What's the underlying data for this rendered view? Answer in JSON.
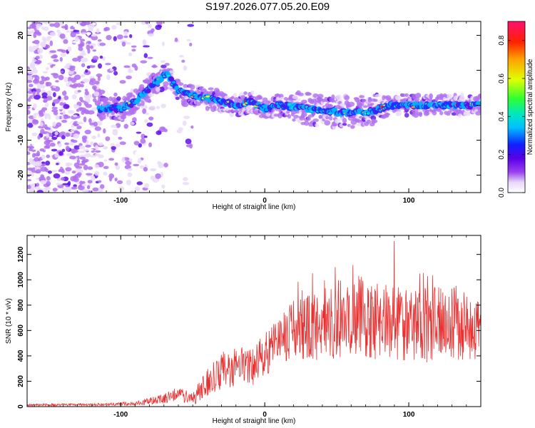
{
  "figure": {
    "title": "S197.2026.077.05.20.E09"
  },
  "chart_data": [
    {
      "type": "heatmap",
      "xlabel": "Height of straight line (km)",
      "ylabel": "Frequency (Hz)",
      "xlim": [
        -165,
        150
      ],
      "ylim": [
        -25,
        24
      ],
      "xticks": [
        -100,
        0,
        100
      ],
      "yticks": [
        -20,
        -10,
        0,
        10,
        20
      ],
      "xtick_labels": [
        "-100",
        "0",
        "100"
      ],
      "ytick_labels": [
        "-20",
        "-10",
        "0",
        "10",
        "20"
      ],
      "colorbar": {
        "label": "Normalized spectral amplitude",
        "range": [
          0.0,
          0.9
        ],
        "ticks": [
          0.0,
          0.2,
          0.4,
          0.6,
          0.8
        ],
        "tick_labels": [
          "0.0",
          "0.2",
          "0.4",
          "0.6",
          "0.8"
        ]
      },
      "ridge": {
        "description_points": [
          [
            -115,
            -1
          ],
          [
            -100,
            -1
          ],
          [
            -90,
            1
          ],
          [
            -80,
            5
          ],
          [
            -68,
            9
          ],
          [
            -60,
            4
          ],
          [
            -50,
            3
          ],
          [
            -40,
            2
          ],
          [
            -20,
            0
          ],
          [
            -10,
            1
          ],
          [
            0,
            -1
          ],
          [
            10,
            0
          ],
          [
            30,
            -1
          ],
          [
            50,
            -2
          ],
          [
            70,
            -2
          ],
          [
            90,
            0
          ],
          [
            110,
            0
          ],
          [
            150,
            0
          ]
        ]
      }
    },
    {
      "type": "line",
      "xlabel": "Height of straight line (km)",
      "ylabel": "SNR (10 * v/v)",
      "xlim": [
        -165,
        150
      ],
      "ylim": [
        0,
        1350
      ],
      "xticks": [
        -100,
        0,
        100
      ],
      "yticks": [
        0,
        200,
        400,
        600,
        800,
        1000,
        1200
      ],
      "xtick_labels": [
        "-100",
        "0",
        "100"
      ],
      "ytick_labels": [
        "0",
        "200",
        "400",
        "600",
        "800",
        "1000",
        "1200"
      ],
      "color": "#e83030",
      "envelope": [
        [
          -165,
          12,
          10
        ],
        [
          -120,
          15,
          10
        ],
        [
          -90,
          25,
          15
        ],
        [
          -70,
          60,
          40
        ],
        [
          -60,
          100,
          60
        ],
        [
          -50,
          60,
          50
        ],
        [
          -40,
          180,
          120
        ],
        [
          -30,
          280,
          150
        ],
        [
          -20,
          320,
          160
        ],
        [
          -10,
          300,
          150
        ],
        [
          0,
          420,
          170
        ],
        [
          10,
          500,
          200
        ],
        [
          20,
          600,
          240
        ],
        [
          30,
          620,
          260
        ],
        [
          40,
          640,
          280
        ],
        [
          50,
          700,
          320
        ],
        [
          60,
          720,
          330
        ],
        [
          70,
          700,
          330
        ],
        [
          80,
          650,
          320
        ],
        [
          90,
          640,
          310
        ],
        [
          100,
          620,
          300
        ],
        [
          110,
          640,
          300
        ],
        [
          120,
          650,
          300
        ],
        [
          130,
          660,
          300
        ],
        [
          140,
          650,
          290
        ],
        [
          150,
          640,
          280
        ]
      ]
    }
  ]
}
